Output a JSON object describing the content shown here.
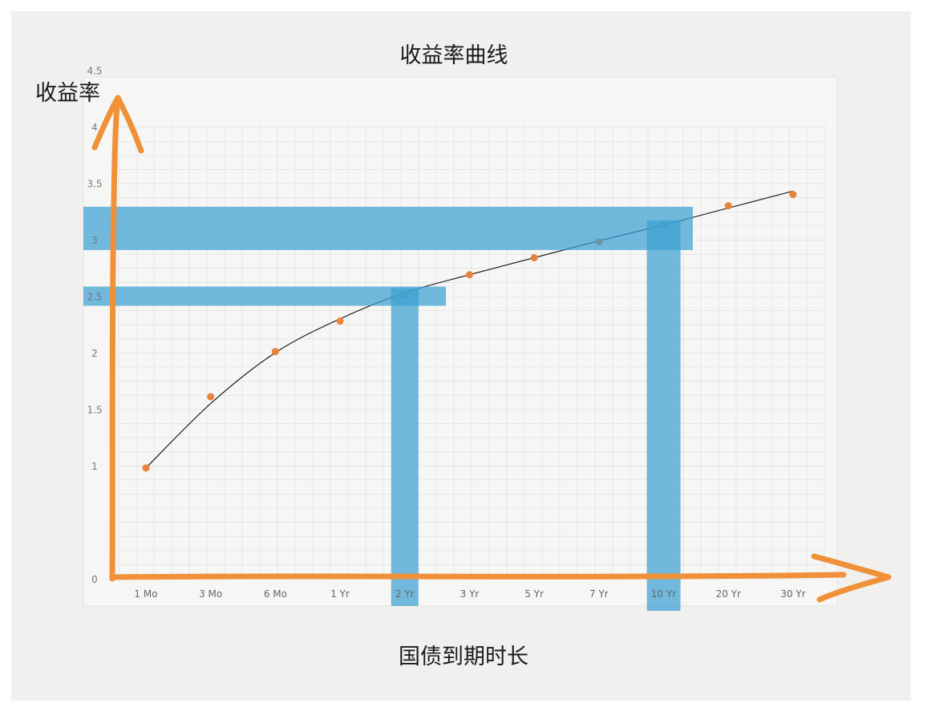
{
  "chart_data": {
    "type": "scatter",
    "title": "收益率曲线",
    "xlabel": "国债到期时长",
    "ylabel": "收益率",
    "categories": [
      "1 Mo",
      "3 Mo",
      "6 Mo",
      "1 Yr",
      "2 Yr",
      "3 Yr",
      "5 Yr",
      "7 Yr",
      "10 Yr",
      "20 Yr",
      "30 Yr"
    ],
    "y_ticks": [
      "0",
      "1",
      "1.5",
      "2",
      "2.5",
      "3",
      "3.5",
      "4",
      "4.5"
    ],
    "ylim": [
      0,
      4.5
    ],
    "grid": true,
    "series": [
      {
        "values": [
          0.98,
          1.61,
          2.01,
          2.28,
          2.51,
          2.69,
          2.84,
          2.98,
          3.13,
          3.3,
          3.4
        ]
      }
    ],
    "trend_line": [
      0.98,
      1.55,
      2.0,
      2.3,
      2.53,
      2.69,
      2.84,
      2.99,
      3.13,
      3.28,
      3.43
    ],
    "highlights": [
      {
        "category": "2 Yr",
        "value": 2.5
      },
      {
        "category": "10 Yr",
        "value": 3.1
      }
    ],
    "colors": {
      "axis": "#f0913a",
      "point": "#e8833a",
      "highlight": "#3ca0d2",
      "trend": "#111111",
      "paper": "#f1f0ef",
      "grid": "#dcdcdc"
    }
  }
}
